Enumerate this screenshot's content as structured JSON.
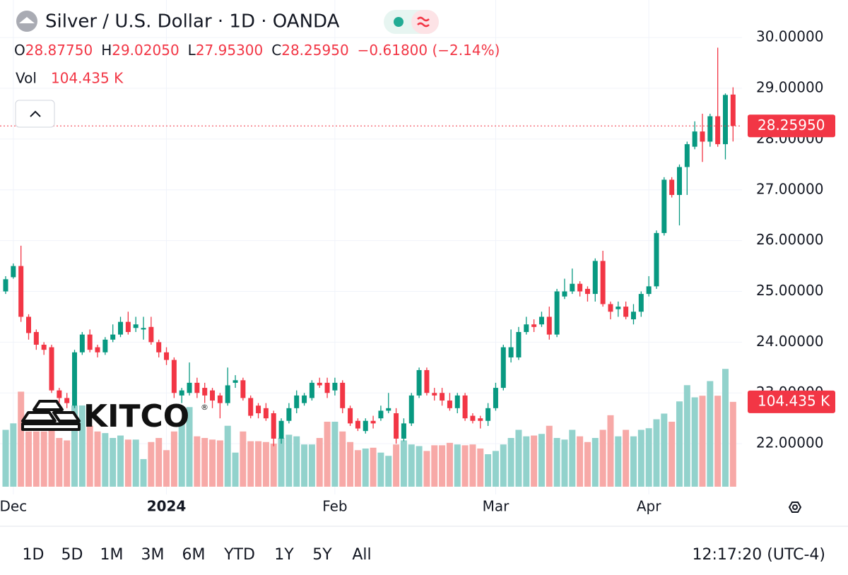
{
  "chart_data": {
    "type": "candlestick",
    "title": "Silver / U.S. Dollar · 1D · OANDA",
    "header": {
      "ohlc": [
        {
          "key": "O",
          "value": "28.87750"
        },
        {
          "key": "H",
          "value": "29.02050"
        },
        {
          "key": "L",
          "value": "27.95300"
        },
        {
          "key": "C",
          "value": "28.25950"
        }
      ],
      "change": "−0.61800 (−2.14%)",
      "vol_key": "Vol",
      "vol_value": "104.435 K"
    },
    "logo": {
      "text": "KITCO",
      "mark": "®"
    },
    "categories": [
      null,
      "Dec",
      null,
      null,
      null,
      null,
      null,
      null,
      null,
      null,
      null,
      null,
      null,
      null,
      null,
      null,
      null,
      null,
      null,
      null,
      null,
      "2024",
      null,
      null,
      null,
      null,
      null,
      null,
      null,
      null,
      null,
      null,
      null,
      null,
      null,
      null,
      null,
      null,
      null,
      null,
      null,
      null,
      null,
      "Feb",
      null,
      null,
      null,
      null,
      null,
      null,
      null,
      null,
      null,
      null,
      null,
      null,
      null,
      null,
      null,
      null,
      null,
      null,
      null,
      null,
      "Mar",
      null,
      null,
      null,
      null,
      null,
      null,
      null,
      null,
      null,
      null,
      null,
      null,
      null,
      null,
      null,
      null,
      null,
      null,
      null,
      "Apr",
      null,
      null,
      null,
      null,
      null,
      null,
      null,
      null,
      null,
      null,
      null
    ],
    "open": [
      25.0,
      25.28,
      25.5,
      24.5,
      24.2,
      23.95,
      23.9,
      23.05,
      22.9,
      22.75,
      23.8,
      24.15,
      23.9,
      23.8,
      24.05,
      24.15,
      24.4,
      24.28,
      24.25,
      24.3,
      24.0,
      23.8,
      23.65,
      22.95,
      23.0,
      23.2,
      23.1,
      23.05,
      22.95,
      22.8,
      23.2,
      23.25,
      22.9,
      22.75,
      22.7,
      22.6,
      22.1,
      22.45,
      22.7,
      22.8,
      22.9,
      23.2,
      23.2,
      23.05,
      23.2,
      22.7,
      22.45,
      22.25,
      22.45,
      22.5,
      22.65,
      22.6,
      22.1,
      22.4,
      22.95,
      23.45,
      23.0,
      23.0,
      22.85,
      22.7,
      22.95,
      22.55,
      22.5,
      22.45,
      22.7,
      23.1,
      23.7,
      23.7,
      24.2,
      24.35,
      24.35,
      24.5,
      24.15,
      24.9,
      25.0,
      25.15,
      25.05,
      24.95,
      25.6,
      24.75,
      24.65,
      24.7,
      24.45,
      24.6,
      24.95,
      25.1,
      26.15,
      27.2,
      26.9,
      27.45,
      27.85,
      28.15,
      27.95,
      28.45,
      27.9,
      28.8775
    ],
    "high": [
      25.3,
      25.55,
      25.9,
      24.55,
      24.25,
      24.0,
      23.95,
      23.1,
      23.0,
      23.85,
      24.2,
      24.25,
      23.95,
      24.1,
      24.35,
      24.5,
      24.6,
      24.5,
      24.5,
      24.5,
      24.05,
      23.9,
      23.7,
      23.1,
      23.6,
      23.3,
      23.2,
      23.1,
      23.0,
      23.5,
      23.35,
      23.3,
      22.95,
      22.8,
      22.8,
      22.65,
      22.5,
      22.8,
      23.05,
      23.0,
      23.25,
      23.3,
      23.3,
      23.3,
      23.25,
      22.75,
      22.5,
      22.5,
      22.55,
      22.75,
      23.0,
      22.7,
      22.5,
      23.0,
      23.5,
      23.5,
      23.1,
      23.1,
      23.0,
      23.0,
      23.0,
      22.6,
      22.55,
      22.8,
      23.2,
      23.95,
      24.25,
      24.3,
      24.5,
      24.45,
      24.6,
      24.7,
      25.05,
      25.25,
      25.45,
      25.2,
      25.1,
      25.65,
      25.8,
      24.8,
      24.8,
      24.8,
      24.75,
      25.0,
      25.3,
      26.2,
      27.25,
      27.25,
      27.5,
      27.95,
      28.35,
      28.5,
      28.5,
      29.8,
      28.9,
      29.0205
    ],
    "low": [
      24.95,
      25.25,
      24.4,
      24.05,
      23.85,
      23.75,
      23.0,
      22.8,
      22.7,
      22.7,
      23.75,
      23.8,
      23.7,
      23.75,
      24.0,
      24.1,
      24.15,
      24.2,
      24.05,
      23.95,
      23.7,
      23.55,
      22.9,
      22.8,
      22.95,
      22.9,
      22.8,
      22.7,
      22.5,
      22.75,
      23.1,
      22.85,
      22.5,
      22.5,
      22.45,
      21.95,
      22.0,
      22.4,
      22.6,
      22.75,
      22.85,
      23.1,
      22.9,
      22.95,
      22.6,
      22.35,
      22.25,
      22.2,
      22.3,
      22.45,
      22.6,
      22.0,
      22.05,
      22.35,
      22.9,
      22.95,
      22.85,
      22.75,
      22.65,
      22.6,
      22.45,
      22.4,
      22.3,
      22.35,
      22.65,
      23.05,
      23.6,
      23.65,
      24.15,
      24.2,
      24.3,
      24.05,
      24.1,
      24.85,
      24.95,
      24.9,
      24.8,
      24.8,
      24.7,
      24.45,
      24.5,
      24.45,
      24.35,
      24.5,
      24.9,
      25.05,
      26.1,
      26.85,
      26.3,
      26.9,
      27.8,
      27.55,
      27.85,
      27.85,
      27.6,
      27.953
    ],
    "close": [
      25.24,
      25.5,
      24.5,
      24.18,
      23.95,
      23.85,
      23.05,
      22.9,
      22.8,
      23.8,
      24.15,
      23.85,
      23.8,
      24.05,
      24.15,
      24.4,
      24.2,
      24.35,
      24.28,
      24.0,
      23.8,
      23.65,
      23.0,
      23.05,
      23.2,
      23.0,
      22.95,
      22.85,
      22.8,
      23.15,
      23.25,
      22.9,
      22.55,
      22.6,
      22.5,
      22.1,
      22.45,
      22.7,
      22.95,
      22.95,
      23.2,
      23.15,
      23.0,
      23.2,
      22.7,
      22.4,
      22.3,
      22.45,
      22.4,
      22.65,
      22.7,
      22.1,
      22.4,
      22.95,
      23.45,
      23.0,
      22.95,
      22.85,
      22.7,
      22.95,
      22.5,
      22.45,
      22.45,
      22.7,
      23.1,
      23.9,
      23.9,
      24.2,
      24.35,
      24.3,
      24.5,
      24.15,
      25.0,
      25.0,
      25.15,
      25.0,
      24.95,
      25.6,
      24.75,
      24.6,
      24.7,
      24.5,
      24.6,
      24.95,
      25.1,
      26.15,
      27.2,
      26.9,
      27.45,
      27.9,
      28.15,
      27.95,
      28.45,
      27.9,
      28.87,
      28.2595
    ],
    "volume": [
      70,
      78,
      117,
      68,
      68,
      68,
      75,
      60,
      57,
      100,
      100,
      75,
      68,
      66,
      60,
      63,
      58,
      58,
      34,
      55,
      60,
      45,
      68,
      78,
      98,
      62,
      60,
      58,
      57,
      75,
      42,
      68,
      56,
      56,
      55,
      53,
      60,
      64,
      62,
      52,
      52,
      60,
      80,
      80,
      68,
      55,
      45,
      47,
      48,
      42,
      38,
      52,
      57,
      52,
      50,
      44,
      51,
      51,
      54,
      52,
      51,
      52,
      47,
      40,
      44,
      52,
      60,
      70,
      62,
      63,
      65,
      75,
      60,
      58,
      70,
      62,
      55,
      60,
      70,
      88,
      62,
      70,
      62,
      70,
      72,
      83,
      90,
      80,
      105,
      125,
      110,
      112,
      130,
      112,
      145,
      104.435
    ],
    "last_price_label": "28.25950",
    "last_volume_label": "104.435 K",
    "ylim": [
      21,
      30.74
    ],
    "yticks": [
      {
        "value": 22,
        "label": "22.00000"
      },
      {
        "value": 23,
        "label": "23.00000"
      },
      {
        "value": 24,
        "label": "24.00000"
      },
      {
        "value": 25,
        "label": "25.00000"
      },
      {
        "value": 26,
        "label": "26.00000"
      },
      {
        "value": 27,
        "label": "27.00000"
      },
      {
        "value": 28,
        "label": "28.00000"
      },
      {
        "value": 29,
        "label": "29.00000"
      },
      {
        "value": 30,
        "label": "30.00000"
      }
    ],
    "volume_ylim": [
      0,
      300
    ],
    "grid": true,
    "up_color": "#089981",
    "down_color": "#f23645",
    "volume_up_color": "#92d2cc",
    "volume_down_color": "#f7a9a7",
    "ranges": [
      "1D",
      "5D",
      "1M",
      "3M",
      "6M",
      "YTD",
      "1Y",
      "5Y",
      "All"
    ],
    "clock": "12:17:20 (UTC-4)"
  }
}
